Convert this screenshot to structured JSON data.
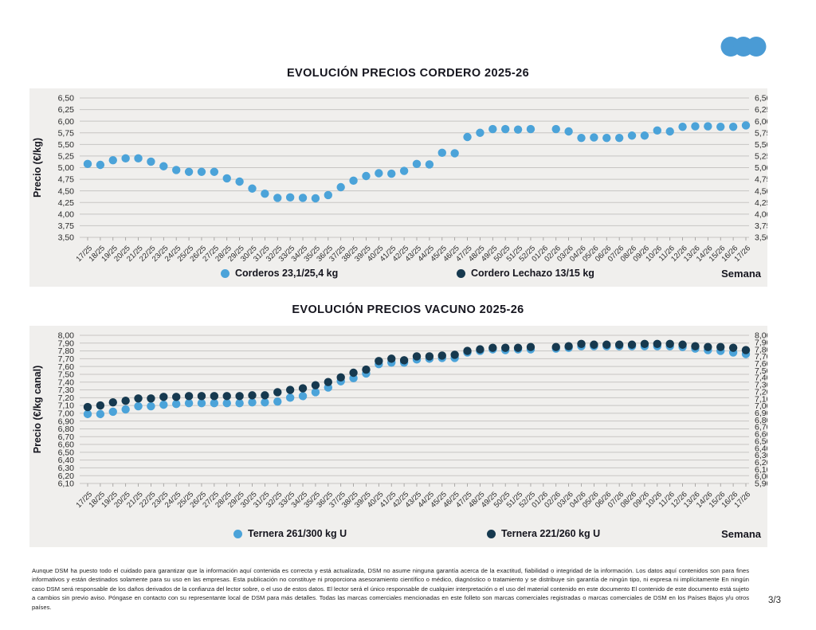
{
  "brand": {
    "logo": "three-dots-logo",
    "logo_color": "#4A9BD5"
  },
  "chart_data": [
    {
      "type": "scatter",
      "title": "EVOLUCIÓN PRECIOS CORDERO 2025-26",
      "ylabel": "Precio (€/kg)",
      "xlabel": "Semana",
      "grid": true,
      "legend_position": "bottom",
      "background": "#F0EFED",
      "ylim": [
        3.5,
        6.5
      ],
      "yticks_left": [
        "6,50",
        "6,25",
        "6,00",
        "5,75",
        "5,50",
        "5,25",
        "5,00",
        "4,75",
        "4,50",
        "4,25",
        "4,00",
        "3,75",
        "3,50"
      ],
      "yticks_right": [
        "6,50",
        "6,25",
        "6,00",
        "5,75",
        "5,50",
        "5,25",
        "5,00",
        "4,75",
        "4,50",
        "4,25",
        "4,00",
        "3,75",
        "3,50"
      ],
      "x": [
        "17/25",
        "18/25",
        "19/25",
        "20/25",
        "21/25",
        "22/25",
        "23/25",
        "24/25",
        "25/25",
        "26/25",
        "27/25",
        "28/25",
        "29/25",
        "30/25",
        "31/25",
        "32/25",
        "33/25",
        "34/25",
        "35/25",
        "36/25",
        "37/25",
        "38/25",
        "39/25",
        "40/25",
        "41/25",
        "42/25",
        "43/25",
        "44/25",
        "45/25",
        "46/25",
        "47/25",
        "48/25",
        "49/25",
        "50/25",
        "51/25",
        "52/25",
        "01/26",
        "02/26",
        "03/26",
        "04/26",
        "05/26",
        "06/26",
        "07/26",
        "08/26",
        "09/26",
        "10/26",
        "11/26",
        "12/26",
        "13/26",
        "14/26",
        "15/26",
        "16/26",
        "17/26"
      ],
      "series": [
        {
          "name": "Corderos 23,1/25,4 kg",
          "color": "#4BA3D9",
          "values": [
            5.08,
            5.06,
            5.16,
            5.2,
            5.2,
            5.13,
            5.03,
            4.95,
            4.91,
            4.91,
            4.91,
            4.77,
            4.7,
            4.55,
            4.44,
            4.35,
            4.36,
            4.35,
            4.34,
            4.41,
            4.58,
            4.72,
            4.82,
            4.88,
            4.87,
            4.93,
            5.08,
            5.07,
            5.32,
            5.31,
            5.66,
            5.75,
            5.83,
            5.83,
            5.82,
            5.83,
            null,
            5.83,
            5.78,
            5.64,
            5.65,
            5.64,
            5.64,
            5.69,
            5.69,
            5.8,
            5.78,
            5.88,
            5.89,
            5.89,
            5.88,
            5.88,
            5.91
          ]
        },
        {
          "name": "Cordero Lechazo 13/15 kg",
          "color": "#16394F",
          "values": []
        }
      ]
    },
    {
      "type": "scatter",
      "title": "EVOLUCIÓN PRECIOS VACUNO 2025-26",
      "ylabel": "Precio (€/kg canal)",
      "xlabel": "Semana",
      "grid": true,
      "legend_position": "bottom",
      "background": "#F0EFED",
      "ylim": [
        6.1,
        8.0
      ],
      "right_axis_range": [
        5.9,
        8.0
      ],
      "yticks_left": [
        "8,00",
        "7,90",
        "7,80",
        "7,70",
        "7,60",
        "7,50",
        "7,40",
        "7,30",
        "7,20",
        "7,10",
        "7,00",
        "6,90",
        "6,80",
        "6,70",
        "6,60",
        "6,50",
        "6,40",
        "6,30",
        "6,20",
        "6,10"
      ],
      "yticks_right": [
        "8,00",
        "7,90",
        "7,80",
        "7,70",
        "7,60",
        "7,50",
        "7,40",
        "7,30",
        "7,20",
        "7,10",
        "7,00",
        "6,90",
        "6,80",
        "6,70",
        "6,60",
        "6,50",
        "6,40",
        "6,30",
        "6,20",
        "6,10",
        "6,00",
        "5,90"
      ],
      "x": [
        "17/25",
        "18/25",
        "19/25",
        "20/25",
        "21/25",
        "22/25",
        "23/25",
        "24/25",
        "25/25",
        "26/25",
        "27/25",
        "28/25",
        "29/25",
        "30/25",
        "31/25",
        "32/25",
        "33/25",
        "34/25",
        "35/25",
        "36/25",
        "37/25",
        "38/25",
        "39/25",
        "40/25",
        "41/25",
        "42/25",
        "43/25",
        "44/25",
        "45/25",
        "46/25",
        "47/25",
        "48/25",
        "49/25",
        "50/25",
        "51/25",
        "52/25",
        "01/26",
        "02/26",
        "03/26",
        "04/26",
        "05/26",
        "06/26",
        "07/26",
        "08/26",
        "09/26",
        "10/26",
        "11/26",
        "12/26",
        "13/26",
        "14/26",
        "15/26",
        "16/26",
        "17/26"
      ],
      "series": [
        {
          "name": "Ternera 261/300 kg U",
          "color": "#4BA3D9",
          "values": [
            6.99,
            6.99,
            7.02,
            7.05,
            7.09,
            7.09,
            7.11,
            7.12,
            7.13,
            7.13,
            7.13,
            7.13,
            7.13,
            7.14,
            7.14,
            7.15,
            7.2,
            7.22,
            7.27,
            7.33,
            7.41,
            7.45,
            7.51,
            7.63,
            7.65,
            7.65,
            7.69,
            7.7,
            7.71,
            7.71,
            7.78,
            7.8,
            7.82,
            7.81,
            7.82,
            7.82,
            null,
            7.83,
            7.84,
            7.86,
            7.86,
            7.86,
            7.86,
            7.86,
            7.86,
            7.86,
            7.86,
            7.85,
            7.83,
            7.81,
            7.8,
            7.78,
            7.76
          ]
        },
        {
          "name": "Ternera 221/260 kg U",
          "color": "#16394F",
          "values": [
            7.08,
            7.1,
            7.14,
            7.16,
            7.19,
            7.19,
            7.21,
            7.21,
            7.22,
            7.22,
            7.22,
            7.22,
            7.22,
            7.23,
            7.23,
            7.27,
            7.3,
            7.32,
            7.36,
            7.4,
            7.46,
            7.52,
            7.56,
            7.67,
            7.7,
            7.68,
            7.73,
            7.73,
            7.74,
            7.75,
            7.8,
            7.82,
            7.84,
            7.84,
            7.84,
            7.85,
            null,
            7.85,
            7.86,
            7.89,
            7.88,
            7.88,
            7.88,
            7.88,
            7.89,
            7.89,
            7.89,
            7.88,
            7.86,
            7.85,
            7.85,
            7.84,
            7.81
          ]
        }
      ]
    }
  ],
  "footer": {
    "disclaimer": "Aunque DSM ha puesto todo el cuidado para garantizar que la información aquí contenida es correcta y está actualizada, DSM no asume ninguna garantía acerca de la exactitud, fiabilidad o integridad de la información. Los datos aquí contenidos son para fines informativos y están destinados solamente para su uso en las empresas. Esta publicación no constituye ni proporciona asesoramiento científico o médico, diagnóstico o tratamiento y se distribuye sin garantía de ningún tipo, ni expresa ni implícitamente En ningún caso DSM será responsable de los daños derivados de la confianza del lector sobre, o el uso de estos datos. El lector será el único responsable de cualquier interpretación o el uso del material contenido en este documento El contenido de este documento está sujeto a cambios sin previo aviso. Póngase en contacto con su representante local de DSM para más detalles. Todas las marcas comerciales mencionadas en este folleto son marcas comerciales registradas o marcas comerciales de DSM en los Países Bajos y/u otros países.",
    "page_number": "3/3"
  }
}
